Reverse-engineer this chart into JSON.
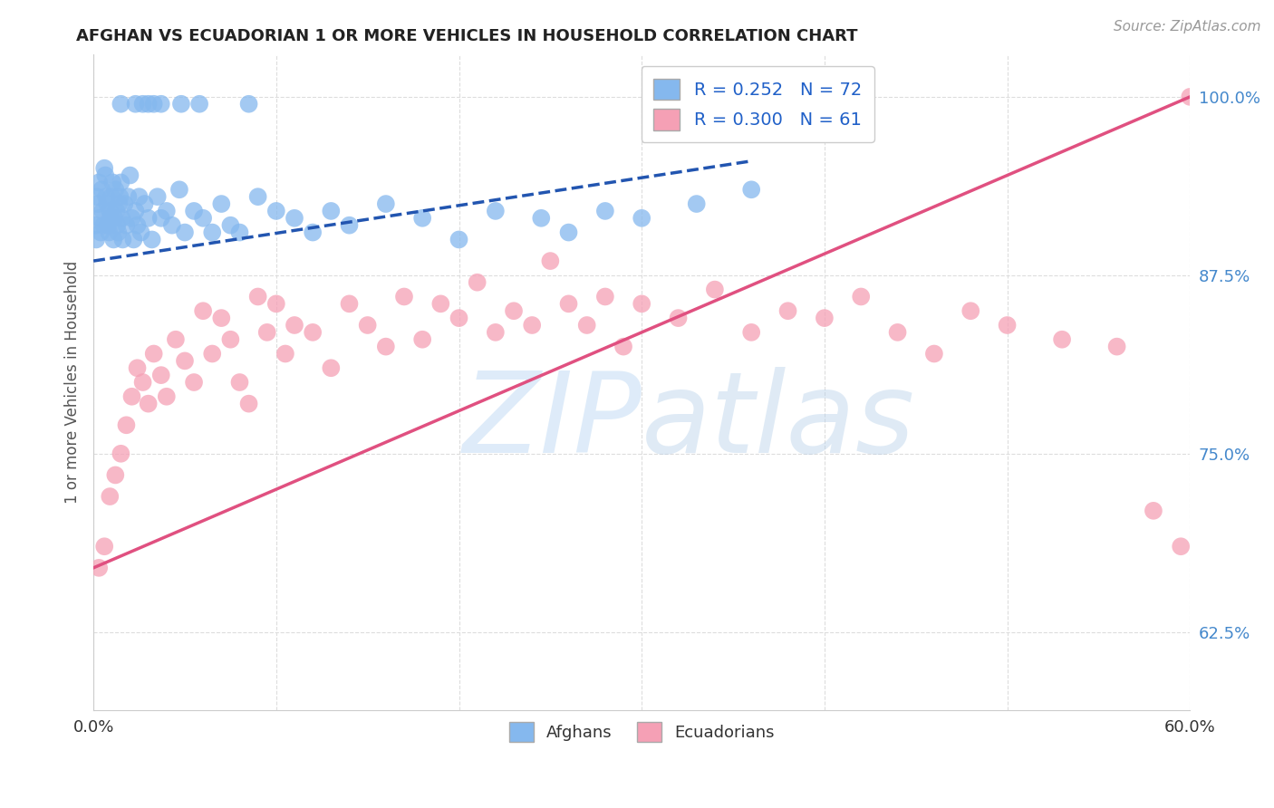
{
  "title": "AFGHAN VS ECUADORIAN 1 OR MORE VEHICLES IN HOUSEHOLD CORRELATION CHART",
  "source": "Source: ZipAtlas.com",
  "ylabel": "1 or more Vehicles in Household",
  "xmin": 0.0,
  "xmax": 60.0,
  "ymin": 57.0,
  "ymax": 103.0,
  "yticks": [
    62.5,
    75.0,
    87.5,
    100.0
  ],
  "xticks": [
    0.0,
    10.0,
    20.0,
    30.0,
    40.0,
    50.0,
    60.0
  ],
  "ytick_labels": [
    "62.5%",
    "75.0%",
    "87.5%",
    "100.0%"
  ],
  "afghan_R": 0.252,
  "afghan_N": 72,
  "ecuadorian_R": 0.3,
  "ecuadorian_N": 61,
  "afghan_color": "#85b8ee",
  "ecuadorian_color": "#f5a0b5",
  "afghan_trend_color": "#2255b0",
  "ecuadorian_trend_color": "#e05080",
  "background_color": "#ffffff",
  "grid_color": "#dddddd",
  "afghans_x": [
    0.1,
    0.15,
    0.2,
    0.25,
    0.3,
    0.35,
    0.4,
    0.45,
    0.5,
    0.55,
    0.6,
    0.65,
    0.7,
    0.75,
    0.8,
    0.85,
    0.9,
    0.95,
    1.0,
    1.05,
    1.1,
    1.15,
    1.2,
    1.25,
    1.3,
    1.35,
    1.4,
    1.45,
    1.5,
    1.55,
    1.6,
    1.7,
    1.8,
    1.9,
    2.0,
    2.1,
    2.2,
    2.3,
    2.4,
    2.5,
    2.6,
    2.8,
    3.0,
    3.2,
    3.5,
    3.7,
    4.0,
    4.3,
    4.7,
    5.0,
    5.5,
    6.0,
    6.5,
    7.0,
    7.5,
    8.0,
    9.0,
    10.0,
    11.0,
    12.0,
    13.0,
    14.0,
    16.0,
    18.0,
    20.0,
    22.0,
    24.5,
    26.0,
    28.0,
    30.0,
    33.0,
    36.0
  ],
  "afghans_y": [
    91.0,
    90.0,
    93.0,
    92.5,
    94.0,
    91.5,
    90.5,
    93.5,
    92.0,
    91.0,
    95.0,
    94.5,
    93.0,
    92.5,
    91.0,
    90.5,
    92.0,
    91.5,
    93.0,
    94.0,
    90.0,
    91.5,
    93.5,
    92.0,
    91.0,
    90.5,
    92.5,
    93.0,
    94.0,
    91.5,
    90.0,
    92.5,
    91.0,
    93.0,
    94.5,
    91.5,
    90.0,
    92.0,
    91.0,
    93.0,
    90.5,
    92.5,
    91.5,
    90.0,
    93.0,
    91.5,
    92.0,
    91.0,
    93.5,
    90.5,
    92.0,
    91.5,
    90.5,
    92.5,
    91.0,
    90.5,
    93.0,
    92.0,
    91.5,
    90.5,
    92.0,
    91.0,
    92.5,
    91.5,
    90.0,
    92.0,
    91.5,
    90.5,
    92.0,
    91.5,
    92.5,
    93.5
  ],
  "afghans_x_top": [
    1.5,
    2.3,
    2.7,
    3.0,
    3.3,
    3.7,
    4.8,
    5.8,
    8.5
  ],
  "afghans_y_top": [
    99.5,
    99.5,
    99.5,
    99.5,
    99.5,
    99.5,
    99.5,
    99.5,
    99.5
  ],
  "ecuadorians_x": [
    0.3,
    0.6,
    0.9,
    1.2,
    1.5,
    1.8,
    2.1,
    2.4,
    2.7,
    3.0,
    3.3,
    3.7,
    4.0,
    4.5,
    5.0,
    5.5,
    6.0,
    6.5,
    7.0,
    7.5,
    8.0,
    8.5,
    9.0,
    9.5,
    10.0,
    10.5,
    11.0,
    12.0,
    13.0,
    14.0,
    15.0,
    16.0,
    17.0,
    18.0,
    19.0,
    20.0,
    21.0,
    22.0,
    23.0,
    24.0,
    25.0,
    26.0,
    27.0,
    28.0,
    29.0,
    30.0,
    32.0,
    34.0,
    36.0,
    38.0,
    40.0,
    42.0,
    44.0,
    46.0,
    48.0,
    50.0,
    53.0,
    56.0,
    58.0,
    59.5,
    60.0
  ],
  "ecuadorians_y": [
    67.0,
    68.5,
    72.0,
    73.5,
    75.0,
    77.0,
    79.0,
    81.0,
    80.0,
    78.5,
    82.0,
    80.5,
    79.0,
    83.0,
    81.5,
    80.0,
    85.0,
    82.0,
    84.5,
    83.0,
    80.0,
    78.5,
    86.0,
    83.5,
    85.5,
    82.0,
    84.0,
    83.5,
    81.0,
    85.5,
    84.0,
    82.5,
    86.0,
    83.0,
    85.5,
    84.5,
    87.0,
    83.5,
    85.0,
    84.0,
    88.5,
    85.5,
    84.0,
    86.0,
    82.5,
    85.5,
    84.5,
    86.5,
    83.5,
    85.0,
    84.5,
    86.0,
    83.5,
    82.0,
    85.0,
    84.0,
    83.0,
    82.5,
    71.0,
    68.5,
    100.0
  ],
  "afghan_trend_x": [
    0.0,
    36.0
  ],
  "afghan_trend_y": [
    88.5,
    95.5
  ],
  "ecuadorian_trend_x": [
    0.0,
    60.0
  ],
  "ecuadorian_trend_y": [
    67.0,
    100.0
  ]
}
